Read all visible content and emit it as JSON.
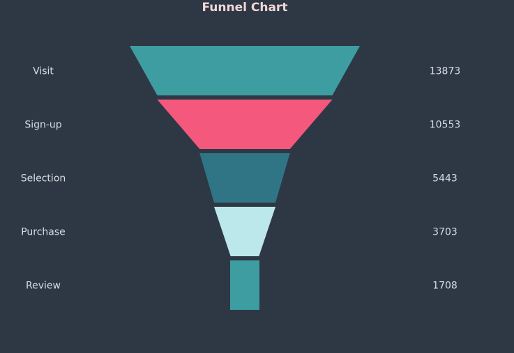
{
  "title": "Funnel Chart",
  "chart_data": {
    "type": "funnel",
    "title": "Funnel Chart",
    "categories": [
      "Visit",
      "Sign-up",
      "Selection",
      "Purchase",
      "Review"
    ],
    "values": [
      13873,
      10553,
      5443,
      3703,
      1708
    ],
    "colors": [
      "#3d9da1",
      "#f4597d",
      "#2f7586",
      "#bde8eb",
      "#3d9da1"
    ],
    "legend": "none",
    "grid": false
  }
}
